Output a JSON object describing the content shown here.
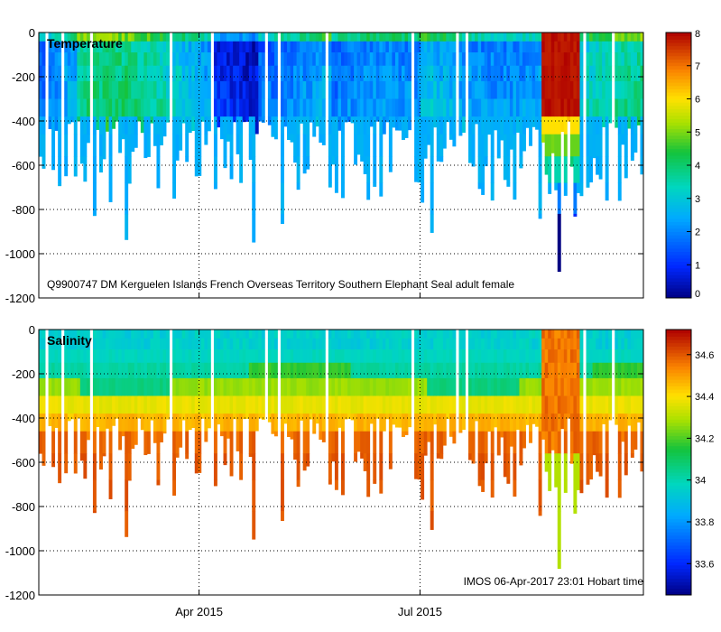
{
  "chart_data": [
    {
      "type": "heatmap",
      "title": "Temperature",
      "variable": "temperature",
      "annotation": "Q9900747 DM Kerguelen Islands French Overseas Territory Southern Elephant Seal adult female",
      "x": {
        "start": "2015-01-25",
        "end": "2015-10-01"
      },
      "ylim": [
        -1200,
        0
      ],
      "yticks": [
        0,
        -200,
        -400,
        -600,
        -800,
        -1000,
        -1200
      ],
      "xticks": [
        {
          "label": "Apr 2015",
          "date": "2015-04-01"
        },
        {
          "label": "Jul 2015",
          "date": "2015-07-01"
        }
      ],
      "clim": [
        0,
        8
      ],
      "colorbar_ticks": [
        0,
        1,
        2,
        3,
        4,
        5,
        6,
        7,
        8
      ],
      "profile_max_depth_range": [
        400,
        1080
      ],
      "warm_event": {
        "start": "2015-08-20",
        "end": "2015-09-05",
        "value": 8
      }
    },
    {
      "type": "heatmap",
      "title": "Salinity",
      "variable": "salinity",
      "annotation": "IMOS 06-Apr-2017 23:01 Hobart time",
      "x": {
        "start": "2015-01-25",
        "end": "2015-10-01"
      },
      "ylim": [
        -1200,
        0
      ],
      "yticks": [
        0,
        -200,
        -400,
        -600,
        -800,
        -1000,
        -1200
      ],
      "xticks": [
        {
          "label": "Apr 2015",
          "date": "2015-04-01"
        },
        {
          "label": "Jul 2015",
          "date": "2015-07-01"
        }
      ],
      "clim": [
        33.45,
        34.72
      ],
      "colorbar_ticks": [
        33.6,
        33.8,
        34,
        34.2,
        34.4,
        34.6
      ],
      "surface_value": 33.95,
      "deep_value": 34.6
    }
  ],
  "colors": {
    "grid": "#000000",
    "missing": "#ffffff"
  }
}
